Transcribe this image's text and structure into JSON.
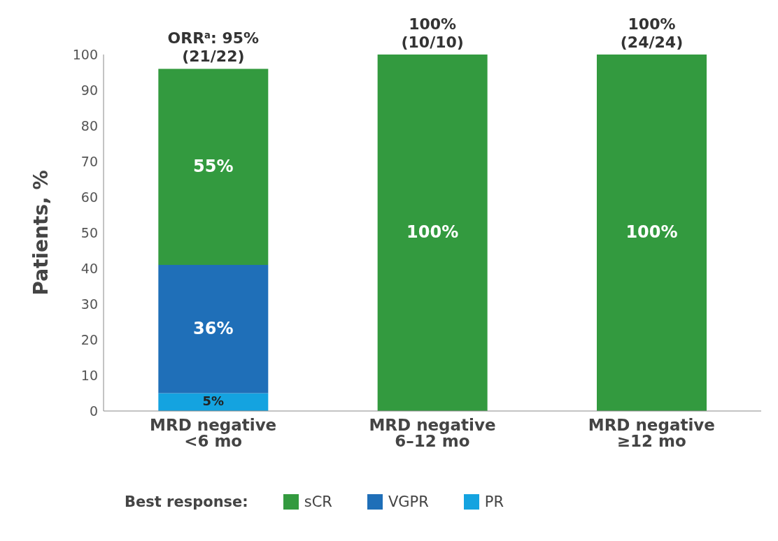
{
  "chart_data": {
    "type": "bar",
    "stacked": true,
    "ylabel": "Patients, %",
    "legend_title": "Best response:",
    "legend": "bottom",
    "categories": [
      "MRD negative <6 mo",
      "MRD negative 6–12 mo",
      "MRD negative ≥12 mo"
    ],
    "series": [
      {
        "name": "PR",
        "color": "#14a3e0",
        "values": [
          5,
          null,
          null
        ],
        "value_labels": [
          "5%",
          null,
          null
        ]
      },
      {
        "name": "VGPR",
        "color": "#1f6fb8",
        "values": [
          36,
          null,
          null
        ],
        "value_labels": [
          "36%",
          null,
          null
        ]
      },
      {
        "name": "sCR",
        "color": "#339a3f",
        "values": [
          55,
          100,
          100
        ],
        "value_labels": [
          "55%",
          "100%",
          "100%"
        ]
      }
    ],
    "totals": [
      "ORR$^{a}$: 95%\n(21/22)",
      "100%\n(10/10)",
      "100%\n(24/24)"
    ],
    "ylim": [
      0,
      100
    ],
    "yticks": [
      0,
      10,
      20,
      30,
      40,
      50,
      60,
      70,
      80,
      90,
      100
    ],
    "grid": false
  }
}
